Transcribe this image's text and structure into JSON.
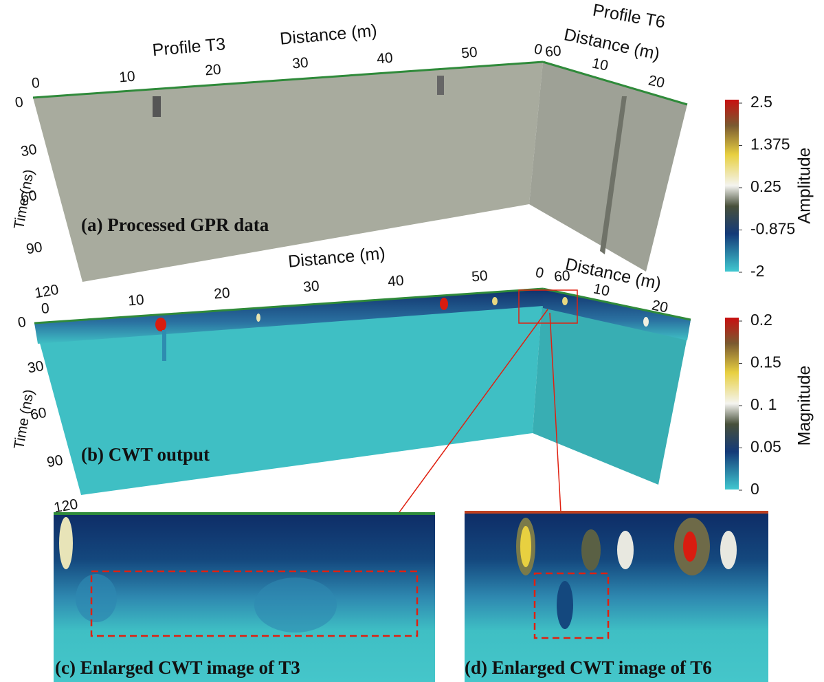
{
  "panel_a": {
    "profile_t3": "Profile T3",
    "profile_t6": "Profile T6",
    "t3_axis_label": "Distance (m)",
    "t6_axis_label": "Distance (m)",
    "t3_ticks": [
      "0",
      "10",
      "20",
      "30",
      "40",
      "50",
      "60"
    ],
    "t6_ticks": [
      "0",
      "10",
      "20"
    ],
    "y_label": "Time (ns)",
    "y_ticks": [
      "0",
      "30",
      "60",
      "90",
      "120"
    ],
    "caption": "(a) Processed GPR data"
  },
  "panel_b": {
    "t3_axis_label": "Distance (m)",
    "t6_axis_label": "Distance (m)",
    "t3_ticks": [
      "0",
      "10",
      "20",
      "30",
      "40",
      "50",
      "60"
    ],
    "t6_ticks": [
      "0",
      "10",
      "20"
    ],
    "y_label": "Time (ns)",
    "y_ticks": [
      "0",
      "30",
      "60",
      "90",
      "120"
    ],
    "caption": "(b) CWT output"
  },
  "colorbar_amplitude": {
    "label": "Amplitude",
    "ticks": [
      "2.5",
      "1.375",
      "0.25",
      "-0.875",
      "-2"
    ]
  },
  "colorbar_magnitude": {
    "label": "Magnitude",
    "ticks": [
      "0.2",
      "0.15",
      "0. 1",
      "0.05",
      "0"
    ]
  },
  "panel_c": {
    "caption": "(c) Enlarged CWT image of T3"
  },
  "panel_d": {
    "caption": "(d) Enlarged CWT image of T6"
  }
}
